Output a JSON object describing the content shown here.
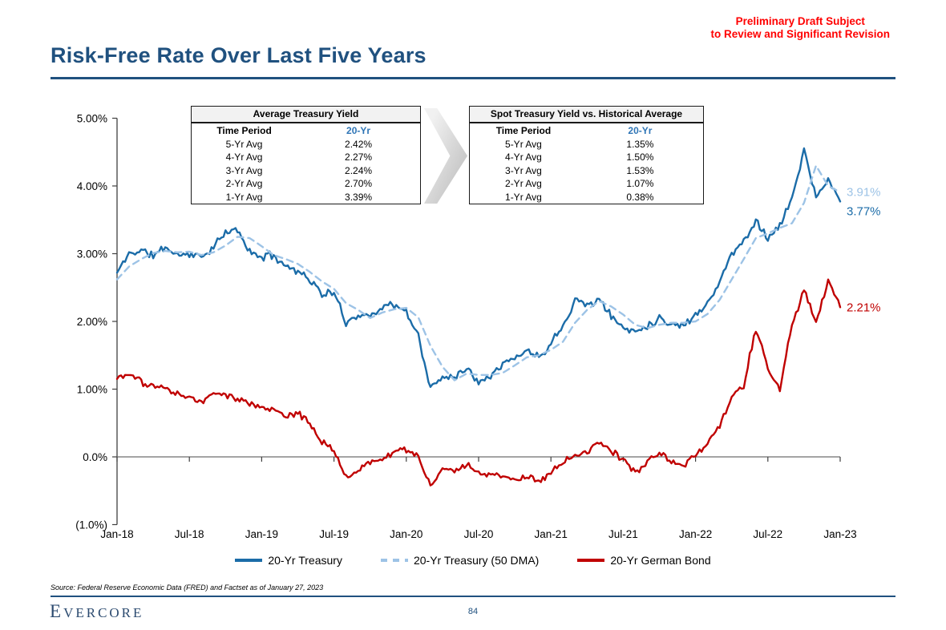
{
  "header": {
    "title": "Risk-Free Rate Over Last Five Years",
    "disclaimer": "Preliminary Draft Subject\nto Review and Significant Revision"
  },
  "colors": {
    "accent_navy": "#20517f",
    "disclaimer_red": "#ff0000",
    "table_header_blue": "#2e75b6",
    "treasury_blue": "#1b6ca8",
    "dma_light_blue": "#9dc3e6",
    "german_red": "#c00000"
  },
  "tables": {
    "average": {
      "title": "Average Treasury Yield",
      "columns": [
        "Time Period",
        "20-Yr"
      ],
      "rows": [
        [
          "5-Yr Avg",
          "2.42%"
        ],
        [
          "4-Yr Avg",
          "2.27%"
        ],
        [
          "3-Yr Avg",
          "2.24%"
        ],
        [
          "2-Yr Avg",
          "2.70%"
        ],
        [
          "1-Yr Avg",
          "3.39%"
        ]
      ]
    },
    "spot": {
      "title": "Spot Treasury Yield vs. Historical Average",
      "columns": [
        "Time Period",
        "20-Yr"
      ],
      "rows": [
        [
          "5-Yr Avg",
          "1.35%"
        ],
        [
          "4-Yr Avg",
          "1.50%"
        ],
        [
          "3-Yr Avg",
          "1.53%"
        ],
        [
          "2-Yr Avg",
          "1.07%"
        ],
        [
          "1-Yr Avg",
          "0.38%"
        ]
      ]
    }
  },
  "chart_data": {
    "type": "line",
    "title": "",
    "xlabel": "",
    "ylabel": "",
    "x_unit": "monthly, Jan-2018 through Jan-2023",
    "x_tick_labels": [
      "Jan-18",
      "Jul-18",
      "Jan-19",
      "Jul-19",
      "Jan-20",
      "Jul-20",
      "Jan-21",
      "Jul-21",
      "Jan-22",
      "Jul-22",
      "Jan-23"
    ],
    "y_tick_labels": [
      "5.00%",
      "4.00%",
      "3.00%",
      "2.00%",
      "1.00%",
      "0.0%",
      "(1.0%)"
    ],
    "y_tick_values": [
      5,
      4,
      3,
      2,
      1,
      0,
      -1
    ],
    "ylim": [
      -1,
      5
    ],
    "grid": false,
    "legend_position": "bottom",
    "series": [
      {
        "name": "20-Yr Treasury",
        "color": "#1b6ca8",
        "style": "solid",
        "end_label": "3.77%",
        "values": [
          2.72,
          3.0,
          3.05,
          2.97,
          3.1,
          2.98,
          3.0,
          2.95,
          3.1,
          3.3,
          3.36,
          3.02,
          2.95,
          2.98,
          2.82,
          2.75,
          2.62,
          2.4,
          2.42,
          1.98,
          2.1,
          2.08,
          2.22,
          2.25,
          2.12,
          1.8,
          1.0,
          1.18,
          1.2,
          1.3,
          1.12,
          1.22,
          1.38,
          1.45,
          1.58,
          1.47,
          1.68,
          1.95,
          2.32,
          2.25,
          2.32,
          2.08,
          1.9,
          1.86,
          1.94,
          2.05,
          1.96,
          1.94,
          2.1,
          2.28,
          2.58,
          3.0,
          3.18,
          3.5,
          3.22,
          3.42,
          3.8,
          4.55,
          3.8,
          4.1,
          3.77
        ]
      },
      {
        "name": "20-Yr Treasury (50 DMA)",
        "color": "#9dc3e6",
        "style": "dashed",
        "end_label": "3.91%",
        "values": [
          2.62,
          2.81,
          2.92,
          3.01,
          3.04,
          3.02,
          3.03,
          2.98,
          3.02,
          3.12,
          3.25,
          3.23,
          3.11,
          2.98,
          2.92,
          2.85,
          2.73,
          2.59,
          2.48,
          2.27,
          2.17,
          2.05,
          2.13,
          2.18,
          2.2,
          2.06,
          1.64,
          1.33,
          1.13,
          1.23,
          1.21,
          1.21,
          1.24,
          1.35,
          1.47,
          1.5,
          1.58,
          1.7,
          1.98,
          2.17,
          2.3,
          2.22,
          2.1,
          1.95,
          1.9,
          1.95,
          1.98,
          1.98,
          2.0,
          2.11,
          2.32,
          2.62,
          2.92,
          3.23,
          3.3,
          3.38,
          3.45,
          3.75,
          4.3,
          4.0,
          3.91
        ]
      },
      {
        "name": "20-Yr German Bond",
        "color": "#c00000",
        "style": "solid",
        "end_label": "2.21%",
        "values": [
          1.15,
          1.25,
          1.1,
          1.05,
          1.0,
          0.95,
          0.88,
          0.82,
          0.95,
          0.93,
          0.85,
          0.78,
          0.72,
          0.7,
          0.62,
          0.65,
          0.5,
          0.22,
          0.1,
          -0.32,
          -0.2,
          -0.08,
          -0.05,
          0.08,
          0.12,
          -0.02,
          -0.45,
          -0.15,
          -0.22,
          -0.12,
          -0.22,
          -0.28,
          -0.28,
          -0.35,
          -0.3,
          -0.35,
          -0.25,
          -0.08,
          0.02,
          0.08,
          0.22,
          0.1,
          -0.05,
          -0.22,
          -0.08,
          0.08,
          -0.08,
          -0.12,
          0.02,
          0.18,
          0.45,
          0.88,
          1.05,
          1.9,
          1.3,
          1.0,
          1.95,
          2.45,
          2.0,
          2.6,
          2.21
        ]
      }
    ]
  },
  "footer": {
    "source": "Source: Federal Reserve Economic Data (FRED) and Factset as of January 27, 2023",
    "logo": "Evercore",
    "page_number": "84"
  }
}
